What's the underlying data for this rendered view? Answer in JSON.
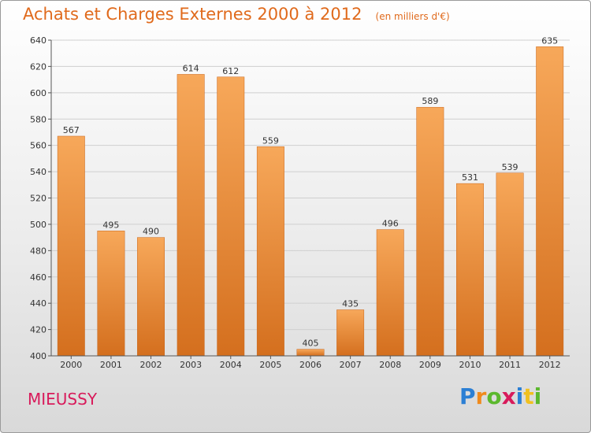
{
  "title": "Achats et Charges Externes 2000 à 2012",
  "subtitle": "(en milliers d'€)",
  "commune": "MIEUSSY",
  "logo": {
    "text": "Proxiti",
    "letters": [
      "P",
      "r",
      "o",
      "x",
      "i",
      "t",
      "i"
    ],
    "colors": [
      "#2b7fd4",
      "#f08a1c",
      "#5cb82e",
      "#d81b5b",
      "#2b7fd4",
      "#f0c020",
      "#5cb82e"
    ]
  },
  "colors": {
    "title": "#e06a1c",
    "commune": "#d81b5b",
    "bar_top": "#f7a85a",
    "bar_bottom": "#d46f1e",
    "grid": "#cfcfcf",
    "axis": "#555555"
  },
  "chart_data": {
    "type": "bar",
    "categories": [
      "2000",
      "2001",
      "2002",
      "2003",
      "2004",
      "2005",
      "2006",
      "2007",
      "2008",
      "2009",
      "2010",
      "2011",
      "2012"
    ],
    "values": [
      567,
      495,
      490,
      614,
      612,
      559,
      405,
      435,
      496,
      589,
      531,
      539,
      635
    ],
    "ylim": [
      400,
      640
    ],
    "yticks": [
      400,
      420,
      440,
      460,
      480,
      500,
      520,
      540,
      560,
      580,
      600,
      620,
      640
    ],
    "grid": true,
    "data_labels": true
  }
}
